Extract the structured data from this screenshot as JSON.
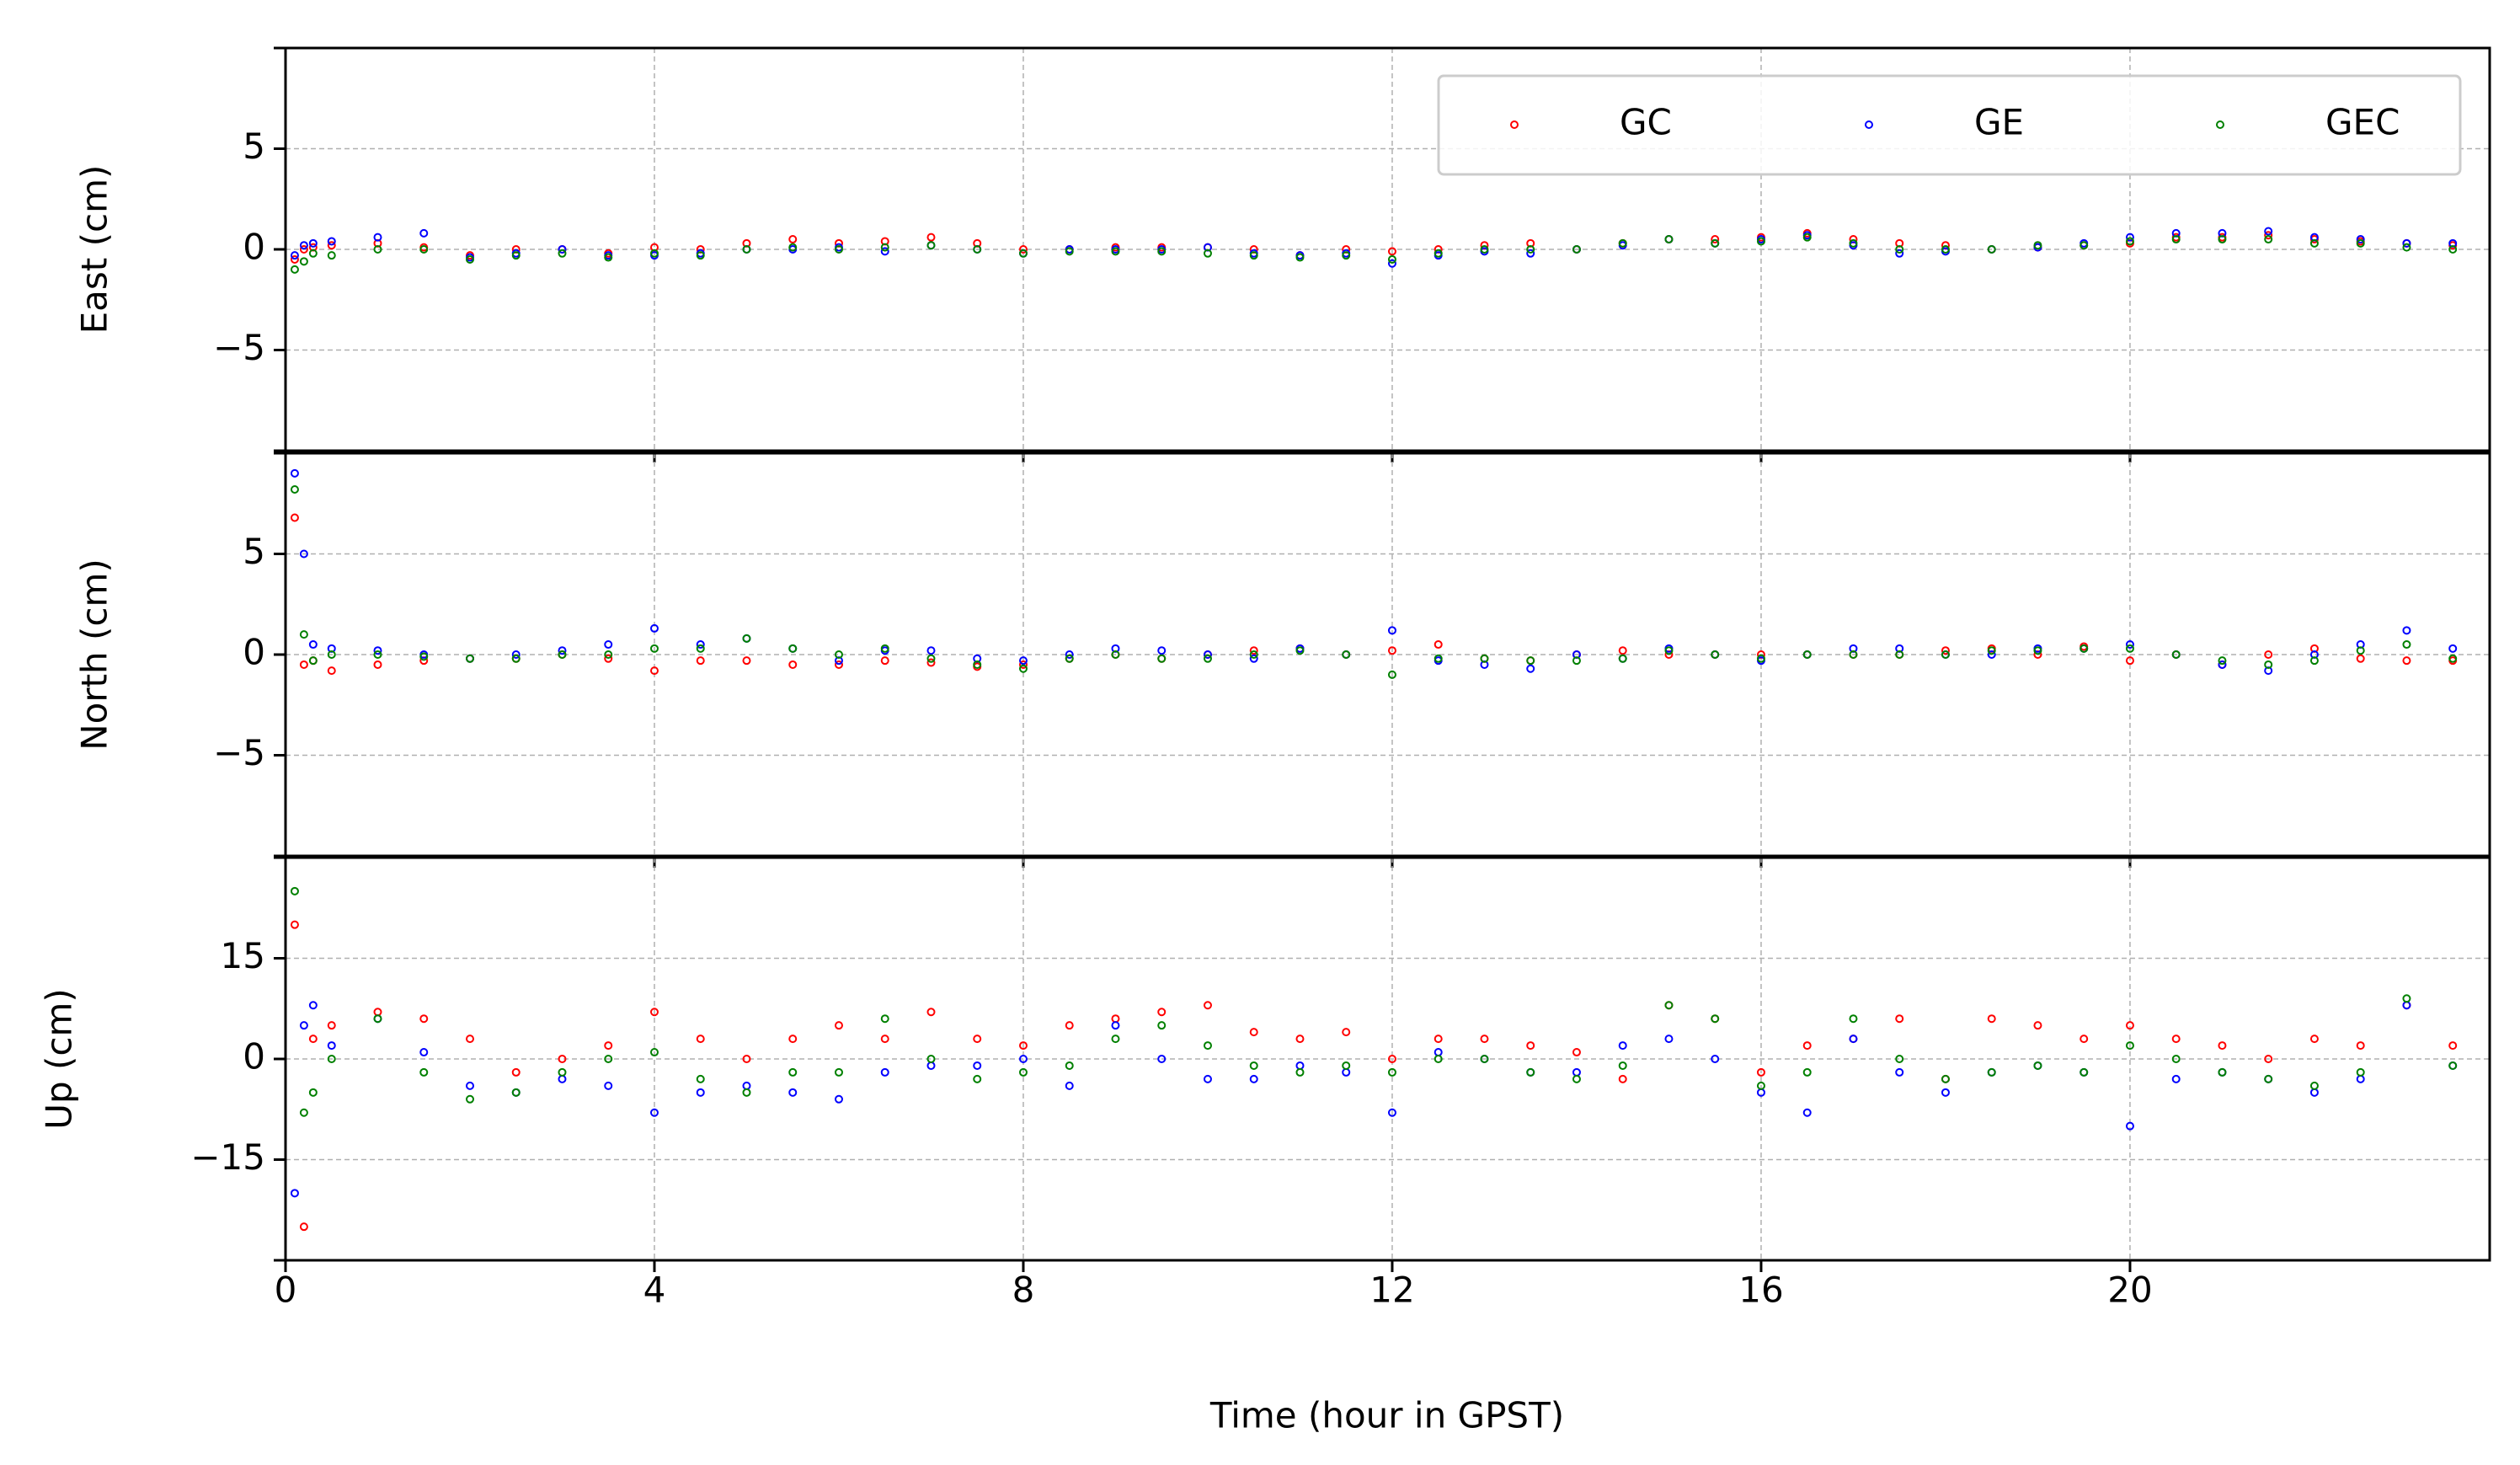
{
  "chart_data": {
    "type": "scatter",
    "xlabel": "Time (hour in GPST)",
    "x": [
      0.1,
      0.2,
      0.3,
      0.5,
      1,
      1.5,
      2,
      2.5,
      3,
      3.5,
      4,
      4.5,
      5,
      5.5,
      6,
      6.5,
      7,
      7.5,
      8,
      8.5,
      9,
      9.5,
      10,
      10.5,
      11,
      11.5,
      12,
      12.5,
      13,
      13.5,
      14,
      14.5,
      15,
      15.5,
      16,
      16.5,
      17,
      17.5,
      18,
      18.5,
      19,
      19.5,
      20,
      20.5,
      21,
      21.5,
      22,
      22.5,
      23,
      23.5
    ],
    "xlim": [
      0,
      23.9
    ],
    "xticks": [
      0,
      4,
      8,
      12,
      16,
      20
    ],
    "grid": true,
    "legend": "upper right",
    "series": [
      {
        "name": "GC",
        "color": "#ff0000"
      },
      {
        "name": "GE",
        "color": "#0000ff"
      },
      {
        "name": "GEC",
        "color": "#008000"
      }
    ],
    "panels": [
      {
        "ylabel": "East (cm)",
        "ylim": [
          -10,
          10
        ],
        "yticks": [
          {
            "value": -5,
            "label": "−5"
          },
          0,
          5
        ],
        "values": [
          [
            -0.5,
            0,
            0.1,
            0.2,
            0.3,
            0.1,
            -0.3,
            0,
            0,
            -0.2,
            0.1,
            0,
            0.3,
            0.5,
            0.3,
            0.4,
            0.6,
            0.3,
            0,
            0,
            0.1,
            0.1,
            0.1,
            0,
            -0.3,
            0,
            -0.1,
            0,
            0.2,
            0.3,
            0,
            0.3,
            0.5,
            0.5,
            0.6,
            0.8,
            0.5,
            0.3,
            0.2,
            0,
            0.1,
            0.2,
            0.3,
            0.6,
            0.6,
            0.7,
            0.5,
            0.4,
            0.3,
            0.2
          ],
          [
            -0.3,
            0.2,
            0.3,
            0.4,
            0.6,
            0.8,
            -0.4,
            -0.2,
            0,
            -0.3,
            -0.3,
            -0.2,
            0,
            0,
            0.1,
            -0.1,
            0.2,
            0,
            -0.2,
            0,
            0,
            0,
            0.1,
            -0.2,
            -0.3,
            -0.2,
            -0.7,
            -0.3,
            -0.1,
            -0.2,
            0,
            0.2,
            0.5,
            0.3,
            0.5,
            0.7,
            0.2,
            -0.2,
            -0.1,
            0,
            0.1,
            0.3,
            0.6,
            0.8,
            0.8,
            0.9,
            0.6,
            0.5,
            0.3,
            0.3
          ],
          [
            -1,
            -0.6,
            -0.2,
            -0.3,
            0,
            0,
            -0.5,
            -0.3,
            -0.2,
            -0.4,
            -0.2,
            -0.3,
            0,
            0.1,
            0,
            0.1,
            0.2,
            0,
            -0.2,
            -0.1,
            -0.1,
            -0.1,
            -0.2,
            -0.3,
            -0.4,
            -0.3,
            -0.5,
            -0.2,
            0,
            0,
            0,
            0.3,
            0.5,
            0.3,
            0.4,
            0.6,
            0.3,
            0,
            0,
            0,
            0.2,
            0.2,
            0.4,
            0.5,
            0.5,
            0.5,
            0.3,
            0.3,
            0.1,
            0
          ]
        ]
      },
      {
        "ylabel": "North (cm)",
        "ylim": [
          -10,
          10
        ],
        "yticks": [
          {
            "value": -5,
            "label": "−5"
          },
          0,
          5
        ],
        "values": [
          [
            6.8,
            -0.5,
            -0.3,
            -0.8,
            -0.5,
            -0.3,
            -0.2,
            -0.2,
            0,
            -0.2,
            -0.8,
            -0.3,
            -0.3,
            -0.5,
            -0.5,
            -0.3,
            -0.4,
            -0.6,
            -0.5,
            -0.2,
            0,
            -0.2,
            0,
            0.2,
            0.3,
            0,
            0.2,
            0.5,
            -0.2,
            -0.3,
            0,
            0.2,
            0,
            0,
            0,
            0,
            0,
            0,
            0.2,
            0.3,
            0,
            0.4,
            -0.3,
            0,
            -0.5,
            0,
            0.3,
            -0.2,
            -0.3,
            -0.3
          ],
          [
            9,
            5,
            0.5,
            0.3,
            0.2,
            0,
            -0.2,
            0,
            0.2,
            0.5,
            1.3,
            0.5,
            0.8,
            0.3,
            -0.3,
            0.2,
            0.2,
            -0.2,
            -0.3,
            0,
            0.3,
            0.2,
            0,
            -0.2,
            0.3,
            0,
            1.2,
            -0.3,
            -0.5,
            -0.7,
            0,
            -0.2,
            0.3,
            0,
            -0.3,
            0,
            0.3,
            0.3,
            0,
            0,
            0.3,
            0.3,
            0.5,
            0,
            -0.5,
            -0.8,
            0,
            0.5,
            1.2,
            0.3
          ],
          [
            8.2,
            1,
            -0.3,
            0,
            0,
            -0.1,
            -0.2,
            -0.2,
            0,
            0,
            0.3,
            0.3,
            0.8,
            0.3,
            0,
            0.3,
            -0.2,
            -0.5,
            -0.7,
            -0.2,
            0,
            -0.2,
            -0.2,
            0,
            0.2,
            0,
            -1,
            -0.2,
            -0.2,
            -0.3,
            -0.3,
            -0.2,
            0.2,
            0,
            -0.2,
            0,
            0,
            0,
            0,
            0.2,
            0.2,
            0.3,
            0.3,
            0,
            -0.3,
            -0.5,
            -0.3,
            0.2,
            0.5,
            -0.2
          ]
        ]
      },
      {
        "ylabel": "Up (cm)",
        "ylim": [
          -30,
          30
        ],
        "yticks": [
          {
            "value": -15,
            "label": "−15"
          },
          0,
          15
        ],
        "values": [
          [
            20,
            -25,
            3,
            5,
            7,
            6,
            3,
            -2,
            0,
            2,
            7,
            3,
            0,
            3,
            5,
            3,
            7,
            3,
            2,
            5,
            6,
            7,
            8,
            4,
            3,
            4,
            0,
            3,
            3,
            2,
            1,
            -3,
            8,
            6,
            -2,
            2,
            3,
            6,
            -3,
            6,
            5,
            3,
            5,
            3,
            2,
            0,
            3,
            2,
            8,
            2
          ],
          [
            -20,
            5,
            8,
            2,
            6,
            1,
            -4,
            -5,
            -3,
            -4,
            -8,
            -5,
            -4,
            -5,
            -6,
            -2,
            -1,
            -1,
            0,
            -4,
            5,
            0,
            -3,
            -3,
            -1,
            -2,
            -8,
            1,
            0,
            -2,
            -2,
            2,
            3,
            0,
            -5,
            -8,
            3,
            -2,
            -5,
            -2,
            -1,
            -2,
            -10,
            -3,
            -2,
            -3,
            -5,
            -3,
            8,
            -1
          ],
          [
            25,
            -8,
            -5,
            0,
            6,
            -2,
            -6,
            -5,
            -2,
            0,
            1,
            -3,
            -5,
            -2,
            -2,
            6,
            0,
            -3,
            -2,
            -1,
            3,
            5,
            2,
            -1,
            -2,
            -1,
            -2,
            0,
            0,
            -2,
            -3,
            -1,
            8,
            6,
            -4,
            -2,
            6,
            0,
            -3,
            -2,
            -1,
            -2,
            2,
            0,
            -2,
            -3,
            -4,
            -2,
            9,
            -1
          ]
        ]
      }
    ]
  }
}
